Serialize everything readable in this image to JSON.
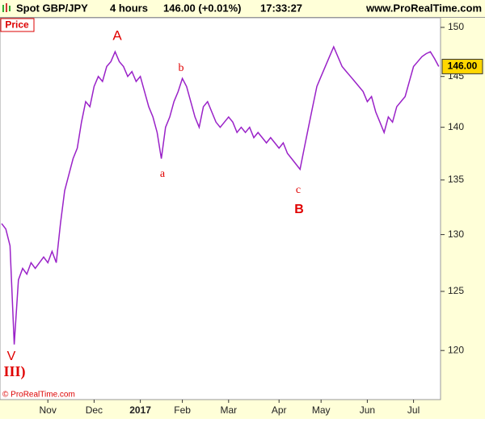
{
  "chart_data": {
    "type": "line",
    "header": {
      "instrument": "Spot GBP/JPY",
      "period": "4 hours",
      "quote": "146.00 (+0.01%)",
      "time": "17:33:27",
      "site": "www.ProRealTime.com"
    },
    "panel_label": "Price",
    "copyright": "© ProRealTime.com",
    "last_value_label": "146.00",
    "categories": [
      null,
      null,
      null,
      null,
      null,
      null,
      null,
      null,
      null,
      null,
      null,
      "Nov",
      null,
      null,
      null,
      null,
      null,
      null,
      null,
      null,
      null,
      null,
      "Dec",
      null,
      null,
      null,
      null,
      null,
      null,
      null,
      null,
      null,
      null,
      "2017",
      null,
      null,
      null,
      null,
      null,
      null,
      null,
      null,
      null,
      "Feb",
      null,
      null,
      null,
      null,
      null,
      null,
      null,
      null,
      null,
      null,
      "Mar",
      null,
      null,
      null,
      null,
      null,
      null,
      null,
      null,
      null,
      null,
      null,
      "Apr",
      null,
      null,
      null,
      null,
      null,
      null,
      null,
      null,
      null,
      "May",
      null,
      null,
      null,
      null,
      null,
      null,
      null,
      null,
      null,
      null,
      "Jun",
      null,
      null,
      null,
      null,
      null,
      null,
      null,
      null,
      null,
      null,
      "Jul",
      null,
      null,
      null,
      null,
      null,
      null
    ],
    "series": [
      {
        "name": "Price",
        "color": "#9a22c8",
        "values": [
          131,
          130.5,
          129,
          120.5,
          126,
          127,
          126.5,
          127.5,
          127,
          127.5,
          128,
          127.5,
          128.5,
          127.5,
          131,
          134,
          135.5,
          137,
          138,
          140.5,
          142.5,
          142,
          144,
          145,
          144.5,
          146,
          146.5,
          147.5,
          146.5,
          146,
          145,
          145.5,
          144.5,
          145,
          143.5,
          142,
          141,
          139.5,
          137,
          140,
          141,
          142.5,
          143.5,
          144.8,
          144,
          142.5,
          141,
          140,
          142,
          142.5,
          141.5,
          140.5,
          140,
          140.5,
          141,
          140.5,
          139.5,
          140,
          139.5,
          140,
          139,
          139.5,
          139,
          138.5,
          139,
          138.5,
          138,
          138.5,
          137.5,
          137,
          136.5,
          136,
          138,
          140,
          142,
          144,
          145,
          146,
          147,
          148,
          147,
          146,
          145.5,
          145,
          144.5,
          144,
          143.5,
          142.5,
          143,
          141.5,
          140.5,
          139.5,
          141,
          140.5,
          142,
          142.5,
          143,
          144.5,
          146,
          146.5,
          147,
          147.3,
          147.5,
          146.8,
          146
        ]
      }
    ],
    "annotations": [
      {
        "text": "A"
      },
      {
        "text": "a"
      },
      {
        "text": "b"
      },
      {
        "text": "c"
      },
      {
        "text": "B"
      },
      {
        "text": "V"
      },
      {
        "text": "III)"
      }
    ],
    "ylim": [
      116,
      151
    ],
    "yticks": [
      120,
      125,
      130,
      135,
      140,
      145,
      150
    ],
    "log_scale": true
  }
}
